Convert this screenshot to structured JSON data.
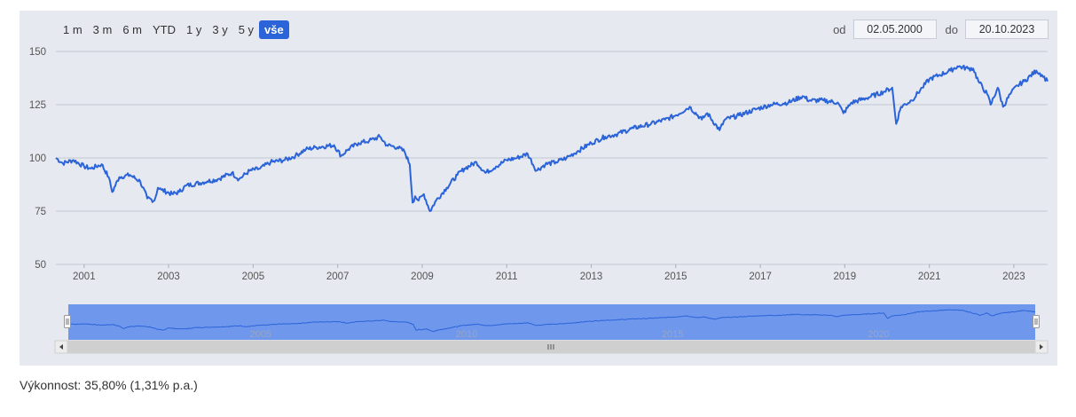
{
  "range_selector": {
    "buttons": [
      "1 m",
      "3 m",
      "6 m",
      "YTD",
      "1 y",
      "3 y",
      "5 y",
      "vše"
    ],
    "active": "vše"
  },
  "date_range": {
    "from_label": "od",
    "from_value": "02.05.2000",
    "to_label": "do",
    "to_value": "20.10.2023"
  },
  "navigator": {
    "x_ticks": [
      "2005",
      "2010",
      "2015",
      "2020"
    ]
  },
  "footer": {
    "performance_text": "Výkonnost: 35,80% (1,31% p.a.)"
  },
  "colors": {
    "line": "#2b63d9",
    "plot_bg": "#e6e9f0",
    "grid": "#c3c8d2",
    "navigator_mask": "#6f98ec"
  },
  "chart_data": {
    "type": "line",
    "title": "",
    "xlabel": "",
    "ylabel": "",
    "x_range": [
      "2000-05-02",
      "2023-10-20"
    ],
    "ylim": [
      50,
      150
    ],
    "y_ticks": [
      50,
      75,
      100,
      125,
      150
    ],
    "x_ticks": [
      "2001",
      "2003",
      "2005",
      "2007",
      "2009",
      "2011",
      "2013",
      "2015",
      "2017",
      "2019",
      "2021",
      "2023"
    ],
    "grid": true,
    "legend": "none",
    "series": [
      {
        "points": [
          [
            "2000-05-02",
            100
          ],
          [
            "2000-07-01",
            97.5
          ],
          [
            "2000-10-01",
            99
          ],
          [
            "2001-01-01",
            96
          ],
          [
            "2001-03-01",
            95
          ],
          [
            "2001-06-01",
            97
          ],
          [
            "2001-08-01",
            91
          ],
          [
            "2001-09-01",
            84
          ],
          [
            "2001-11-01",
            91
          ],
          [
            "2002-02-01",
            92
          ],
          [
            "2002-05-01",
            89
          ],
          [
            "2002-07-01",
            81
          ],
          [
            "2002-09-01",
            80
          ],
          [
            "2002-10-01",
            86
          ],
          [
            "2002-11-01",
            85
          ],
          [
            "2003-02-01",
            83
          ],
          [
            "2003-04-01",
            84
          ],
          [
            "2003-06-01",
            87
          ],
          [
            "2003-12-01",
            89
          ],
          [
            "2004-03-01",
            90
          ],
          [
            "2004-07-01",
            93
          ],
          [
            "2004-09-01",
            90
          ],
          [
            "2004-12-01",
            94
          ],
          [
            "2005-03-01",
            95
          ],
          [
            "2005-06-01",
            98
          ],
          [
            "2005-10-01",
            99
          ],
          [
            "2006-01-01",
            101
          ],
          [
            "2006-04-01",
            104
          ],
          [
            "2006-07-01",
            105
          ],
          [
            "2006-12-01",
            106
          ],
          [
            "2007-02-01",
            101
          ],
          [
            "2007-04-01",
            104
          ],
          [
            "2007-07-01",
            107
          ],
          [
            "2007-10-01",
            108
          ],
          [
            "2008-01-01",
            110
          ],
          [
            "2008-03-01",
            106
          ],
          [
            "2008-06-01",
            105
          ],
          [
            "2008-08-01",
            103
          ],
          [
            "2008-09-15",
            97
          ],
          [
            "2008-10-10",
            79
          ],
          [
            "2008-11-01",
            82
          ],
          [
            "2008-12-01",
            80
          ],
          [
            "2009-01-15",
            83
          ],
          [
            "2009-03-09",
            75
          ],
          [
            "2009-05-01",
            80
          ],
          [
            "2009-08-01",
            86
          ],
          [
            "2009-11-01",
            92
          ],
          [
            "2010-01-01",
            95
          ],
          [
            "2010-04-15",
            98
          ],
          [
            "2010-07-01",
            93
          ],
          [
            "2010-10-01",
            96
          ],
          [
            "2011-01-01",
            99
          ],
          [
            "2011-04-01",
            100
          ],
          [
            "2011-07-01",
            102
          ],
          [
            "2011-09-15",
            94
          ],
          [
            "2011-12-01",
            97
          ],
          [
            "2012-03-01",
            98
          ],
          [
            "2012-06-01",
            100
          ],
          [
            "2012-09-01",
            103
          ],
          [
            "2013-01-01",
            107
          ],
          [
            "2013-05-01",
            110
          ],
          [
            "2013-08-01",
            111
          ],
          [
            "2014-01-01",
            114
          ],
          [
            "2014-06-01",
            116
          ],
          [
            "2014-10-01",
            118
          ],
          [
            "2015-01-01",
            120
          ],
          [
            "2015-05-01",
            124
          ],
          [
            "2015-08-15",
            118
          ],
          [
            "2015-10-01",
            121
          ],
          [
            "2016-01-15",
            113
          ],
          [
            "2016-03-01",
            118
          ],
          [
            "2016-07-01",
            120
          ],
          [
            "2016-12-01",
            123
          ],
          [
            "2017-04-01",
            125
          ],
          [
            "2017-09-01",
            126
          ],
          [
            "2018-01-01",
            129
          ],
          [
            "2018-03-01",
            127
          ],
          [
            "2018-07-01",
            127
          ],
          [
            "2018-11-01",
            126
          ],
          [
            "2018-12-20",
            121
          ],
          [
            "2019-03-01",
            126
          ],
          [
            "2019-07-01",
            128
          ],
          [
            "2019-12-01",
            131
          ],
          [
            "2020-02-15",
            133
          ],
          [
            "2020-03-20",
            116
          ],
          [
            "2020-05-01",
            124
          ],
          [
            "2020-08-01",
            127
          ],
          [
            "2020-11-01",
            133
          ],
          [
            "2021-01-01",
            137
          ],
          [
            "2021-04-01",
            139
          ],
          [
            "2021-07-01",
            141
          ],
          [
            "2021-09-01",
            143
          ],
          [
            "2021-12-01",
            142
          ],
          [
            "2022-01-15",
            142
          ],
          [
            "2022-03-01",
            136
          ],
          [
            "2022-05-15",
            130
          ],
          [
            "2022-06-15",
            125
          ],
          [
            "2022-08-15",
            133
          ],
          [
            "2022-09-30",
            124
          ],
          [
            "2022-12-01",
            130
          ],
          [
            "2023-02-01",
            134
          ],
          [
            "2023-04-01",
            136
          ],
          [
            "2023-07-15",
            141
          ],
          [
            "2023-09-01",
            139
          ],
          [
            "2023-10-20",
            136
          ]
        ]
      }
    ]
  }
}
